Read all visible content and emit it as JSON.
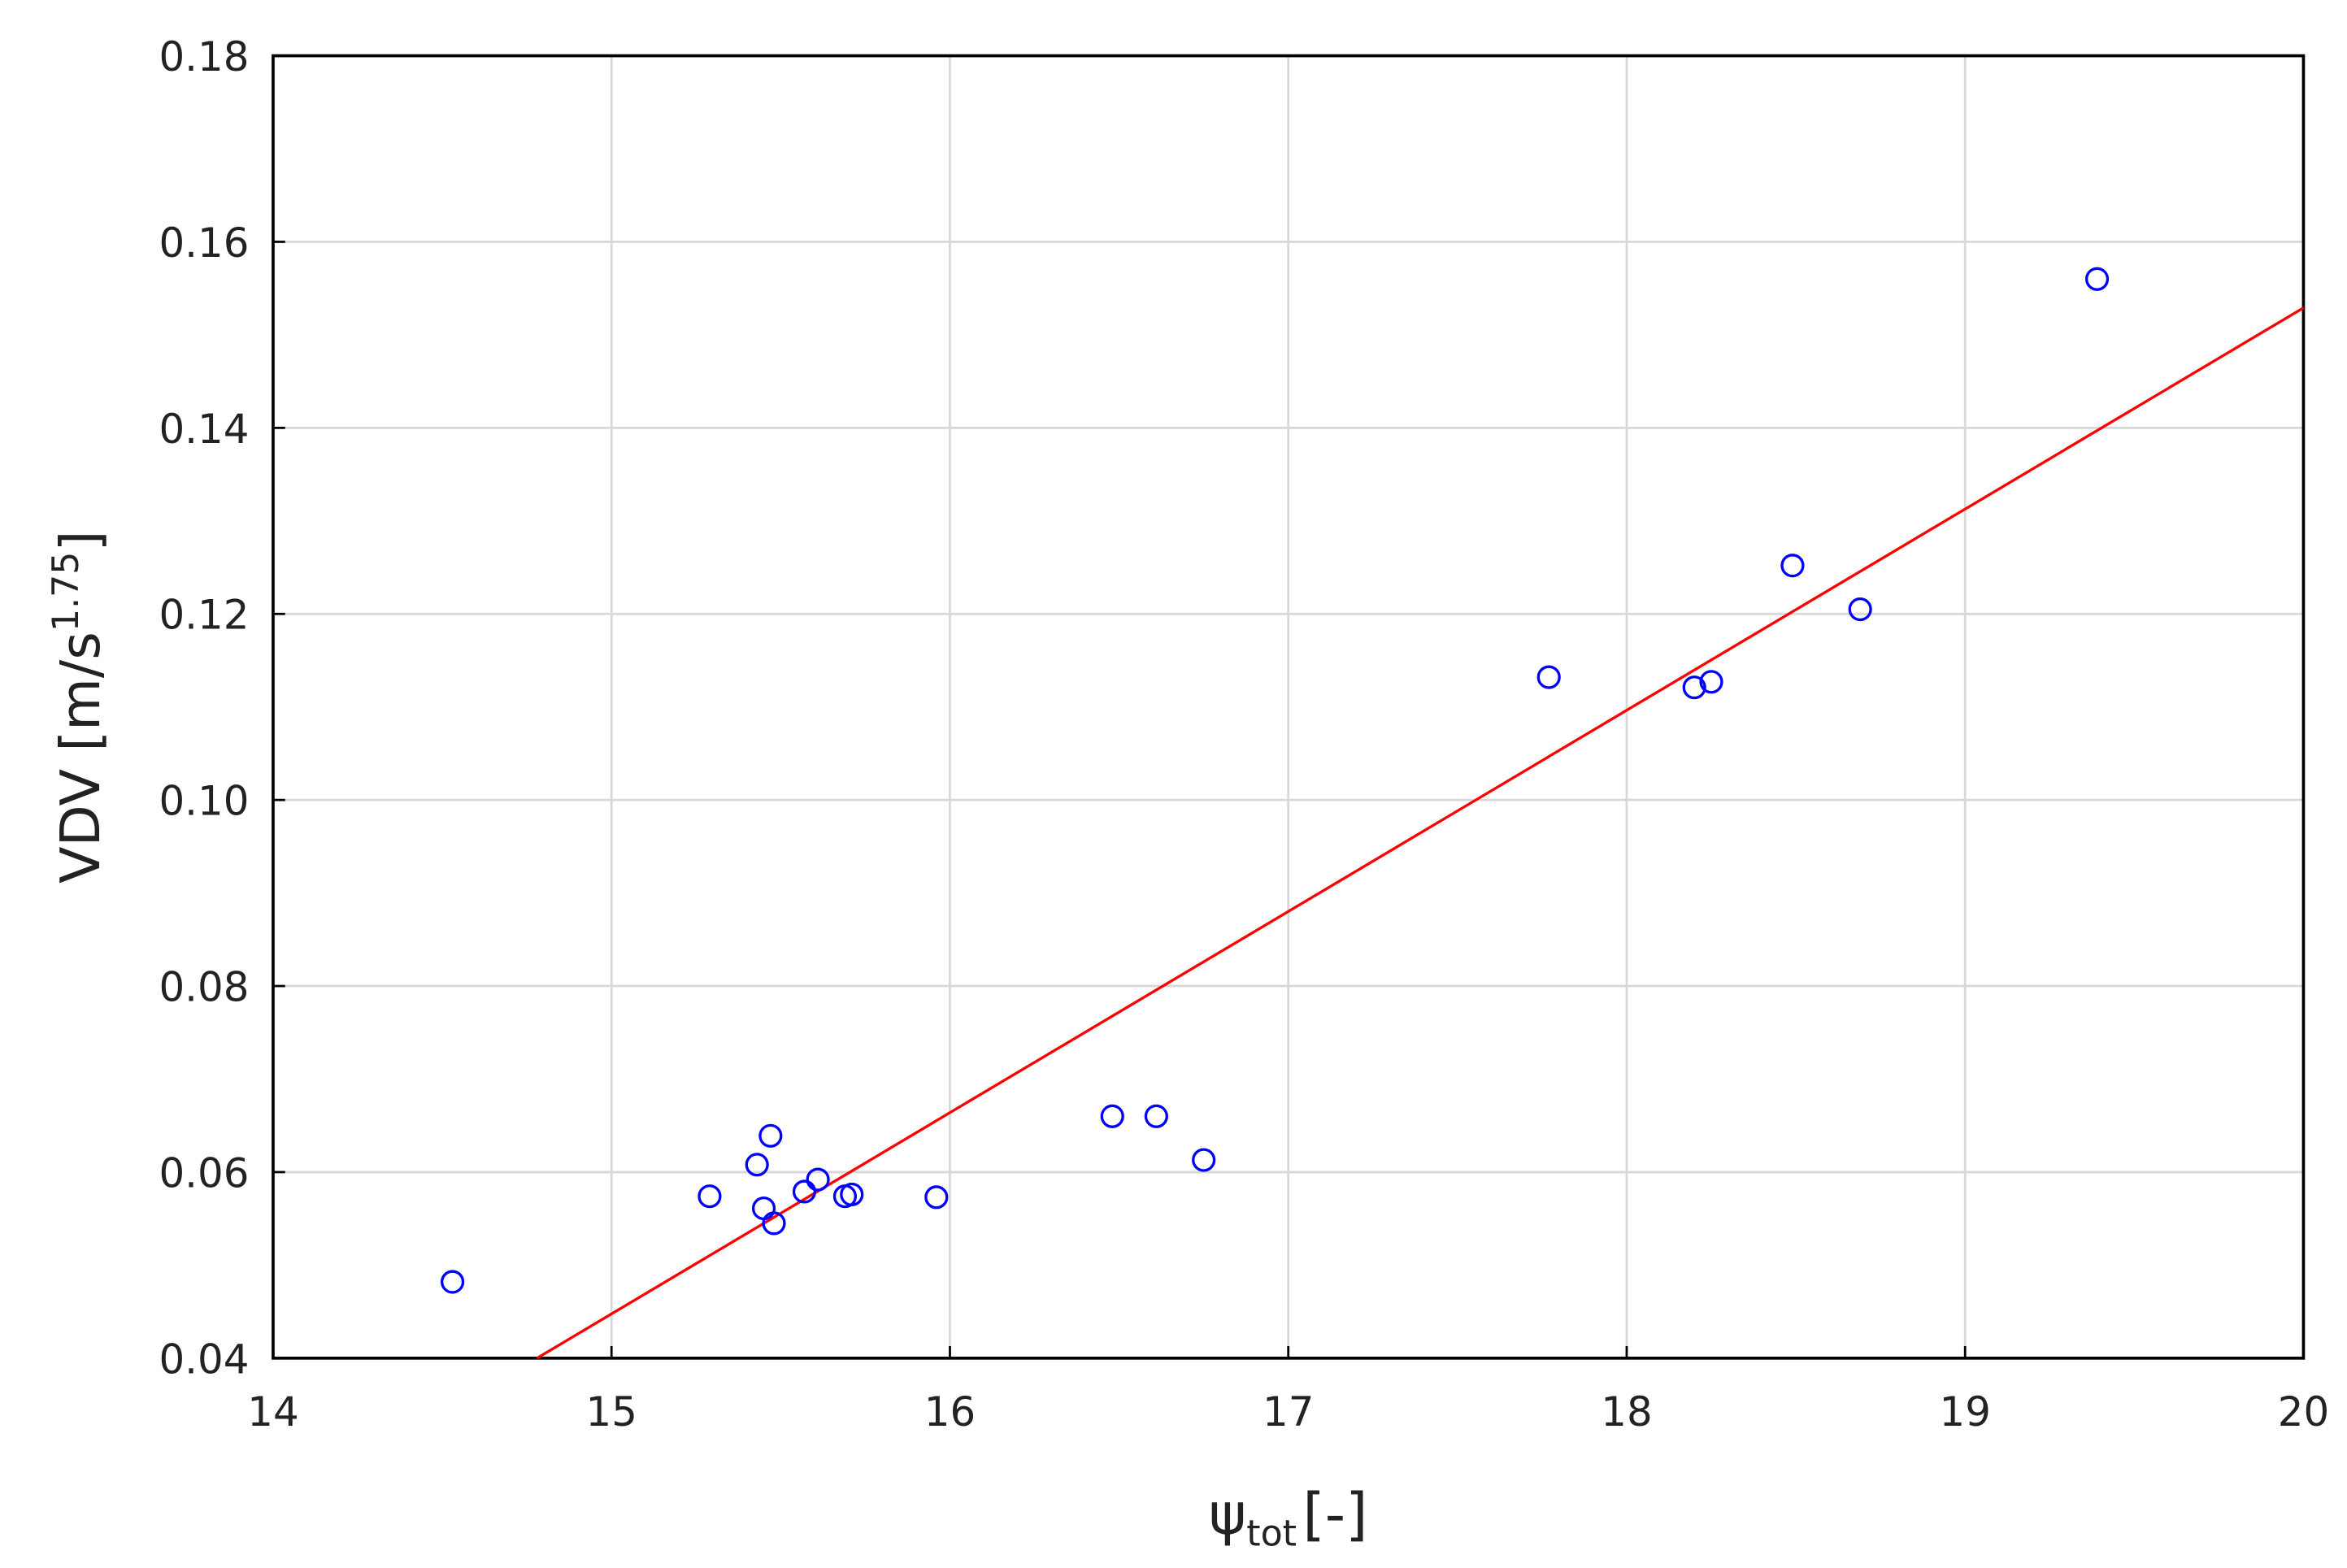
{
  "chart_data": {
    "type": "scatter",
    "xlabel": {
      "text": "ψ",
      "subscript": "tot",
      "suffix": "[-]"
    },
    "ylabel": {
      "text": "VDV [m/s",
      "superscript": "1.75",
      "suffix": "]"
    },
    "xlim": [
      14,
      20
    ],
    "xticks": [
      14,
      15,
      16,
      17,
      18,
      19,
      20
    ],
    "ylim": [
      0.04,
      0.18
    ],
    "yticks": [
      0.04,
      0.06,
      0.08,
      {
        "value": 0.1,
        "label": "0.10"
      },
      0.12,
      0.14,
      0.16,
      0.18
    ],
    "grid": true,
    "color": "#0000ff",
    "x": [
      14.53,
      15.29,
      15.43,
      15.47,
      15.45,
      15.48,
      15.57,
      15.61,
      15.69,
      15.71,
      15.96,
      16.48,
      16.61,
      16.75,
      17.77,
      18.2,
      18.25,
      18.49,
      18.69,
      19.39
    ],
    "values": [
      0.0482,
      0.0574,
      0.0608,
      0.0639,
      0.0561,
      0.0545,
      0.0579,
      0.0592,
      0.0574,
      0.0576,
      0.0573,
      0.066,
      0.066,
      0.0613,
      0.1132,
      0.1121,
      0.1127,
      0.1252,
      0.1205,
      0.156
    ],
    "fit_line": {
      "color": "#ff0000",
      "x": [
        14.78,
        20
      ],
      "values": [
        0.04,
        0.1529
      ]
    }
  }
}
